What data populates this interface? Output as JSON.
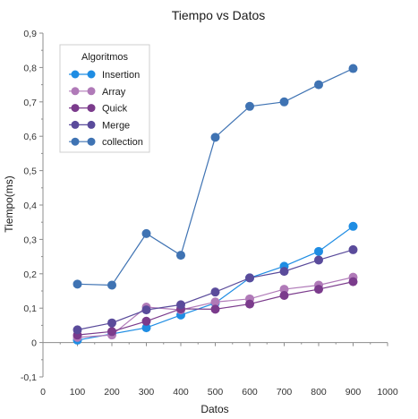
{
  "chart_data": {
    "type": "line",
    "title": "Tiempo vs Datos",
    "xlabel": "Datos",
    "ylabel": "Tiempo(ms)",
    "xlim": [
      0,
      1000
    ],
    "ylim": [
      -0.1,
      0.9
    ],
    "x_ticks": [
      0,
      100,
      200,
      300,
      400,
      500,
      600,
      700,
      800,
      900,
      1000
    ],
    "x_tick_labels": [
      "0",
      "100",
      "200",
      "300",
      "400",
      "500",
      "600",
      "700",
      "800",
      "900",
      "1000"
    ],
    "y_ticks": [
      -0.1,
      0,
      0.1,
      0.2,
      0.3,
      0.4,
      0.5,
      0.6,
      0.7,
      0.8,
      0.9
    ],
    "y_tick_labels": [
      "-0,1",
      "0",
      "0,1",
      "0,2",
      "0,3",
      "0,4",
      "0,5",
      "0,6",
      "0,7",
      "0,8",
      "0,9"
    ],
    "grid": false,
    "legend": {
      "title": "Algoritmos",
      "position": "top-left"
    },
    "x": [
      100,
      200,
      300,
      400,
      500,
      600,
      700,
      800,
      900
    ],
    "series": [
      {
        "name": "Insertion",
        "color": "#1f8de3",
        "values": [
          0.007,
          0.025,
          0.043,
          0.08,
          0.115,
          0.188,
          0.222,
          0.265,
          0.338
        ]
      },
      {
        "name": "Array",
        "color": "#b07ab8",
        "values": [
          0.015,
          0.022,
          0.103,
          0.095,
          0.118,
          0.127,
          0.155,
          0.167,
          0.19
        ]
      },
      {
        "name": "Quick",
        "color": "#7b3b8c",
        "values": [
          0.022,
          0.032,
          0.062,
          0.098,
          0.097,
          0.112,
          0.137,
          0.155,
          0.177
        ]
      },
      {
        "name": "Merge",
        "color": "#5a4b9b",
        "values": [
          0.037,
          0.057,
          0.095,
          0.11,
          0.147,
          0.188,
          0.207,
          0.24,
          0.27
        ]
      },
      {
        "name": "collection",
        "color": "#3f73b3",
        "values": [
          0.17,
          0.167,
          0.317,
          0.254,
          0.597,
          0.687,
          0.7,
          0.75,
          0.797
        ]
      }
    ]
  }
}
